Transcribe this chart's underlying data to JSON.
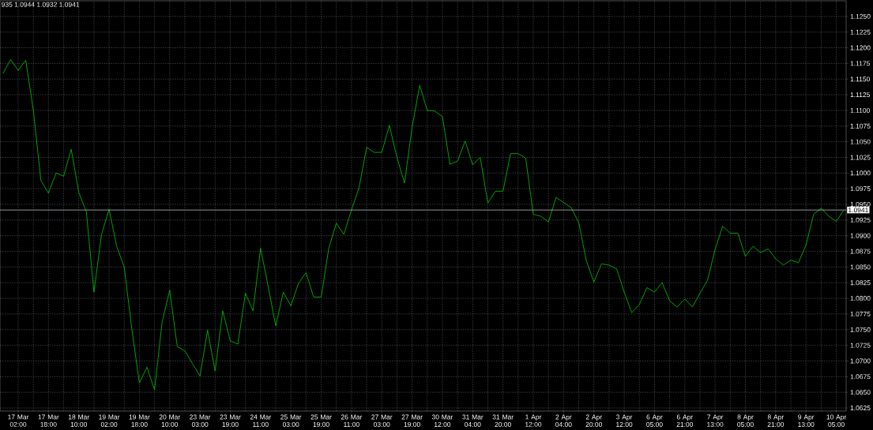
{
  "chart_data": {
    "type": "line",
    "grid": true,
    "line_style": "solid",
    "annotations": [
      "935 1.0944 1.0932 1.0941"
    ],
    "ylim": [
      1.062,
      1.1275
    ],
    "categories": [
      null,
      null,
      "17 Mar 02:00",
      null,
      null,
      null,
      "17 Mar 18:00",
      null,
      null,
      null,
      "18 Mar 10:00",
      null,
      null,
      null,
      "19 Mar 02:00",
      null,
      null,
      null,
      "19 Mar 18:00",
      null,
      null,
      null,
      "20 Mar 10:00",
      null,
      null,
      null,
      "23 Mar 03:00",
      null,
      null,
      null,
      "23 Mar 19:00",
      null,
      null,
      null,
      "24 Mar 11:00",
      null,
      null,
      null,
      "25 Mar 03:00",
      null,
      null,
      null,
      "25 Mar 19:00",
      null,
      null,
      null,
      "26 Mar 11:00",
      null,
      null,
      null,
      "27 Mar 03:00",
      null,
      null,
      null,
      "27 Mar 19:00",
      null,
      null,
      null,
      "30 Mar 12:00",
      null,
      null,
      null,
      "31 Mar 04:00",
      null,
      null,
      null,
      "31 Mar 20:00",
      null,
      null,
      null,
      "1 Apr 12:00",
      null,
      null,
      null,
      "2 Apr 04:00",
      null,
      null,
      null,
      "2 Apr 20:00",
      null,
      null,
      null,
      "3 Apr 12:00",
      null,
      null,
      null,
      "6 Apr 05:00",
      null,
      null,
      null,
      "6 Apr 21:00",
      null,
      null,
      null,
      "7 Apr 13:00",
      null,
      null,
      null,
      "8 Apr 05:00",
      null,
      null,
      null,
      "8 Apr 21:00",
      null,
      null,
      null,
      "9 Apr 13:00",
      null,
      null,
      null,
      "10 Apr 05:00",
      null
    ],
    "yticks": [
      {
        "value": 1.0625,
        "label": "1.0625"
      },
      {
        "value": 1.065,
        "label": "1.0650"
      },
      {
        "value": 1.0675,
        "label": "1.0675"
      },
      {
        "value": 1.07,
        "label": "1.0700"
      },
      {
        "value": 1.0725,
        "label": "1.0725"
      },
      {
        "value": 1.075,
        "label": "1.0750"
      },
      {
        "value": 1.0775,
        "label": "1.0775"
      },
      {
        "value": 1.08,
        "label": "1.0800"
      },
      {
        "value": 1.0825,
        "label": "1.0825"
      },
      {
        "value": 1.085,
        "label": "1.0850"
      },
      {
        "value": 1.0875,
        "label": "1.0875"
      },
      {
        "value": 1.09,
        "label": "1.0900"
      },
      {
        "value": 1.0925,
        "label": "1.0925"
      },
      {
        "value": 1.095,
        "label": "1.0950"
      },
      {
        "value": 1.0975,
        "label": "1.0975"
      },
      {
        "value": 1.1,
        "label": "1.1000"
      },
      {
        "value": 1.1025,
        "label": "1.1025"
      },
      {
        "value": 1.105,
        "label": "1.1050"
      },
      {
        "value": 1.1075,
        "label": "1.1075"
      },
      {
        "value": 1.11,
        "label": "1.1100"
      },
      {
        "value": 1.1125,
        "label": "1.1125"
      },
      {
        "value": 1.115,
        "label": "1.1150"
      },
      {
        "value": 1.1175,
        "label": "1.1175"
      },
      {
        "value": 1.12,
        "label": "1.1200"
      },
      {
        "value": 1.1225,
        "label": "1.1225"
      },
      {
        "value": 1.125,
        "label": "1.1250"
      }
    ],
    "ref_lines": [
      {
        "axis": "y",
        "value": 1.0941,
        "label": "1.0941",
        "color": "#b4b9c0"
      }
    ],
    "series": [
      {
        "color": "#00c800",
        "values": [
          1.1159,
          1.1181,
          1.1164,
          1.118,
          1.11,
          1.0988,
          1.0968,
          1.1,
          1.0995,
          1.1038,
          1.0969,
          1.0938,
          1.081,
          1.0902,
          1.0942,
          1.0883,
          1.085,
          1.0751,
          1.0665,
          1.069,
          1.0654,
          1.0762,
          1.0813,
          1.0723,
          1.0716,
          1.0696,
          1.0676,
          1.0749,
          1.0684,
          1.078,
          1.0732,
          1.0727,
          1.0808,
          1.078,
          1.088,
          1.0819,
          1.0756,
          1.081,
          1.0788,
          1.0824,
          1.0841,
          1.0802,
          1.0802,
          1.088,
          1.092,
          1.0902,
          1.0941,
          1.0977,
          1.1041,
          1.1033,
          1.1033,
          1.1076,
          1.1025,
          1.0984,
          1.1073,
          1.114,
          1.11,
          1.1099,
          1.109,
          1.1014,
          1.1019,
          1.1051,
          1.1013,
          1.1025,
          1.0952,
          1.0971,
          1.0971,
          1.1031,
          1.1031,
          1.1024,
          1.0934,
          1.0931,
          1.0922,
          1.0961,
          1.0953,
          1.0945,
          1.0921,
          1.086,
          1.0826,
          1.0855,
          1.0853,
          1.0847,
          1.081,
          1.0777,
          1.079,
          1.0817,
          1.081,
          1.0825,
          1.0796,
          1.0786,
          1.0799,
          1.0786,
          1.0808,
          1.0829,
          1.0878,
          1.0915,
          1.0904,
          1.0904,
          1.0867,
          1.0883,
          1.0873,
          1.0879,
          1.0863,
          1.0853,
          1.0861,
          1.0857,
          1.0885,
          1.0934,
          1.0944,
          1.0931,
          1.0923,
          1.0941
        ]
      }
    ]
  }
}
